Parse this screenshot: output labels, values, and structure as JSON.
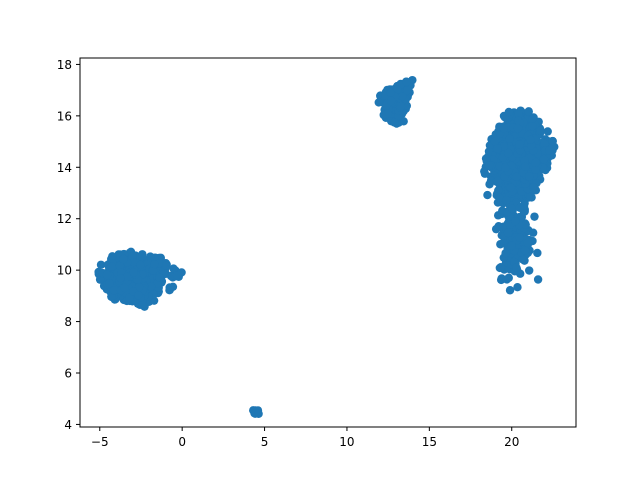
{
  "chart_data": {
    "type": "scatter",
    "title": "",
    "xlabel": "",
    "ylabel": "",
    "xlim": [
      -6.2,
      23.9
    ],
    "ylim": [
      3.9,
      18.25
    ],
    "xticks": [
      -5,
      0,
      5,
      10,
      15,
      20
    ],
    "yticks": [
      4,
      6,
      8,
      10,
      12,
      14,
      16,
      18
    ],
    "grid": false,
    "marker_color": "#1f77b4",
    "clusters": [
      {
        "center": [
          -3.0,
          9.7
        ],
        "spread": [
          1.25,
          0.55
        ],
        "count": 520,
        "outline": [
          [
            -5.1,
            9.9
          ],
          [
            -4.9,
            10.3
          ],
          [
            -4.2,
            10.6
          ],
          [
            -3.4,
            10.75
          ],
          [
            -2.5,
            10.65
          ],
          [
            -1.6,
            10.6
          ],
          [
            -0.95,
            10.45
          ],
          [
            -0.8,
            10.0
          ],
          [
            -1.2,
            9.5
          ],
          [
            -1.3,
            9.0
          ],
          [
            -1.8,
            8.7
          ],
          [
            -2.4,
            8.55
          ],
          [
            -3.0,
            8.75
          ],
          [
            -3.8,
            8.75
          ],
          [
            -4.5,
            9.0
          ],
          [
            -5.0,
            9.5
          ]
        ]
      },
      {
        "center": [
          -0.35,
          9.9
        ],
        "spread": [
          0.12,
          0.1
        ],
        "count": 12
      },
      {
        "center": [
          -0.75,
          9.3
        ],
        "spread": [
          0.08,
          0.06
        ],
        "count": 4
      },
      {
        "center": [
          4.6,
          4.5
        ],
        "spread": [
          0.1,
          0.04
        ],
        "count": 8
      },
      {
        "center": [
          13.0,
          16.5
        ],
        "spread": [
          0.55,
          0.45
        ],
        "count": 160,
        "outline": [
          [
            11.8,
            16.4
          ],
          [
            12.0,
            16.8
          ],
          [
            12.6,
            17.1
          ],
          [
            13.3,
            17.4
          ],
          [
            14.1,
            17.4
          ],
          [
            13.8,
            16.8
          ],
          [
            13.6,
            16.1
          ],
          [
            13.5,
            15.8
          ],
          [
            12.8,
            15.6
          ],
          [
            12.3,
            15.8
          ],
          [
            12.0,
            16.1
          ]
        ]
      },
      {
        "center": [
          20.4,
          14.4
        ],
        "spread": [
          1.0,
          0.95
        ],
        "count": 650,
        "outline": [
          [
            18.0,
            14.0
          ],
          [
            18.5,
            14.9
          ],
          [
            19.1,
            15.6
          ],
          [
            19.8,
            16.3
          ],
          [
            20.7,
            16.35
          ],
          [
            21.3,
            16.1
          ],
          [
            21.9,
            15.6
          ],
          [
            22.6,
            15.2
          ],
          [
            22.6,
            14.6
          ],
          [
            22.1,
            13.9
          ],
          [
            21.6,
            13.2
          ],
          [
            21.0,
            12.4
          ],
          [
            20.8,
            11.5
          ],
          [
            20.6,
            10.6
          ],
          [
            20.1,
            10.05
          ],
          [
            19.6,
            10.1
          ],
          [
            19.3,
            10.7
          ],
          [
            19.4,
            11.4
          ],
          [
            19.0,
            12.2
          ],
          [
            19.1,
            12.9
          ],
          [
            18.7,
            13.3
          ],
          [
            18.2,
            13.6
          ]
        ]
      },
      {
        "center": [
          20.2,
          11.3
        ],
        "spread": [
          0.45,
          0.7
        ],
        "count": 160
      }
    ]
  }
}
